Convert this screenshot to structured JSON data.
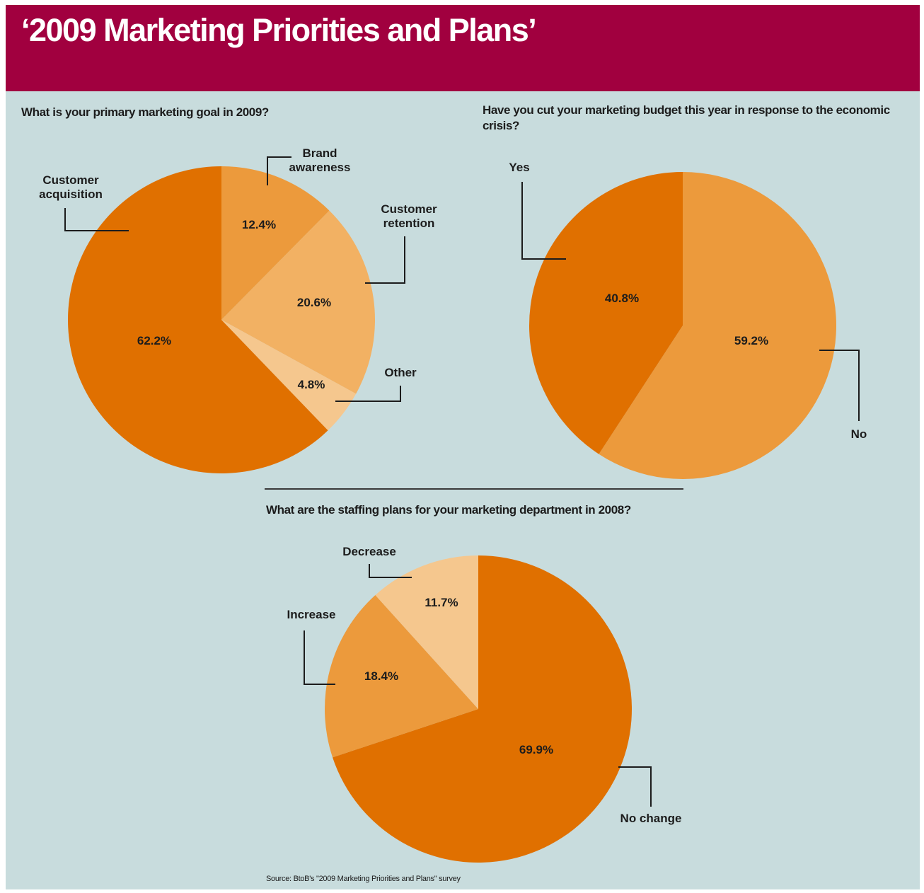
{
  "title": "‘2009 Marketing Priorities and Plans’",
  "colors": {
    "banner": "#a1003f",
    "background": "#c8dcdd",
    "dark_orange": "#e07000",
    "medium_orange": "#ec9a3c",
    "light_orange": "#f2b163",
    "pale_orange": "#f5c78e"
  },
  "source": "Source: BtoB's \"2009 Marketing Priorities and Plans\" survey",
  "chart_data": [
    {
      "type": "pie",
      "title": "What is your primary marketing goal in 2009?",
      "categories": [
        "Brand awareness",
        "Customer retention",
        "Other",
        "Customer acquisition"
      ],
      "values": [
        12.4,
        20.6,
        4.8,
        62.2
      ],
      "value_labels": [
        "12.4%",
        "20.6%",
        "4.8%",
        "62.2%"
      ],
      "category_labels": [
        [
          "Brand",
          "awareness"
        ],
        [
          "Customer",
          "retention"
        ],
        [
          "Other"
        ],
        [
          "Customer",
          "acquisition"
        ]
      ],
      "colors": [
        "#ec9a3c",
        "#f2b163",
        "#f5c78e",
        "#e07000"
      ]
    },
    {
      "type": "pie",
      "title": "Have you cut your marketing budget this year in response to the economic crisis?",
      "categories": [
        "No",
        "Yes"
      ],
      "values": [
        59.2,
        40.8
      ],
      "value_labels": [
        "59.2%",
        "40.8%"
      ],
      "category_labels": [
        [
          "No"
        ],
        [
          "Yes"
        ]
      ],
      "colors": [
        "#ec9a3c",
        "#e07000"
      ]
    },
    {
      "type": "pie",
      "title": "What are the staffing plans for your marketing department in 2008?",
      "categories": [
        "No change",
        "Increase",
        "Decrease"
      ],
      "values": [
        69.9,
        18.4,
        11.7
      ],
      "value_labels": [
        "69.9%",
        "18.4%",
        "11.7%"
      ],
      "category_labels": [
        [
          "No change"
        ],
        [
          "Increase"
        ],
        [
          "Decrease"
        ]
      ],
      "colors": [
        "#e07000",
        "#ec9a3c",
        "#f5c78e"
      ]
    }
  ]
}
